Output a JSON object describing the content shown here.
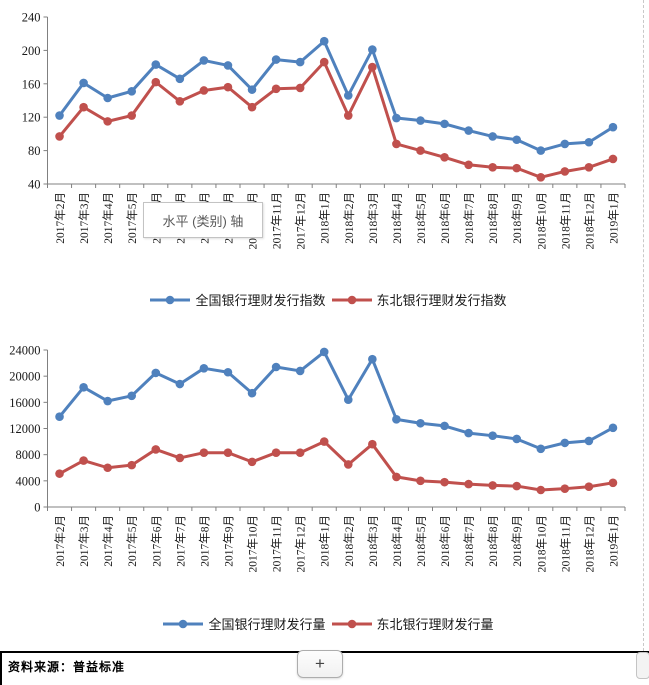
{
  "tooltip": {
    "text": "水平 (类别) 轴"
  },
  "footer": {
    "source_label": "资料来源：普益标准",
    "plus_button_label": "+"
  },
  "colors": {
    "series_blue": "#4F81BD",
    "series_red": "#C0504D",
    "axis": "#808080",
    "tick_text": "#1a1a1a",
    "page_boundary_dash": "#c9c9c9"
  },
  "chart_data": [
    {
      "id": "index",
      "type": "line",
      "title": "",
      "xlabel": "",
      "ylabel": "",
      "grid": false,
      "legend_position": "bottom",
      "ylim": [
        40,
        240
      ],
      "ytick_step": 40,
      "categories": [
        "2017年2月",
        "2017年3月",
        "2017年4月",
        "2017年5月",
        "2017年6月",
        "2017年7月",
        "2017年8月",
        "2017年9月",
        "2017年10月",
        "2017年11月",
        "2017年12月",
        "2018年1月",
        "2018年2月",
        "2018年3月",
        "2018年4月",
        "2018年5月",
        "2018年6月",
        "2018年7月",
        "2018年8月",
        "2018年9月",
        "2018年10月",
        "2018年11月",
        "2018年12月",
        "2019年1月"
      ],
      "series": [
        {
          "name": "全国银行理财发行指数",
          "color": "#4F81BD",
          "values": [
            122,
            161,
            143,
            151,
            183,
            166,
            188,
            182,
            153,
            189,
            186,
            211,
            146,
            201,
            119,
            116,
            112,
            104,
            97,
            93,
            80,
            88,
            90,
            108
          ]
        },
        {
          "name": "东北银行理财发行指数",
          "color": "#C0504D",
          "values": [
            97,
            132,
            115,
            122,
            162,
            139,
            152,
            156,
            132,
            154,
            155,
            186,
            122,
            180,
            88,
            80,
            72,
            63,
            60,
            59,
            48,
            55,
            60,
            70
          ]
        }
      ]
    },
    {
      "id": "volume",
      "type": "line",
      "title": "",
      "xlabel": "",
      "ylabel": "",
      "grid": false,
      "legend_position": "bottom",
      "ylim": [
        0,
        24000
      ],
      "ytick_step": 4000,
      "categories": [
        "2017年2月",
        "2017年3月",
        "2017年4月",
        "2017年5月",
        "2017年6月",
        "2017年7月",
        "2017年8月",
        "2017年9月",
        "2017年10月",
        "2017年11月",
        "2017年12月",
        "2018年1月",
        "2018年2月",
        "2018年3月",
        "2018年4月",
        "2018年5月",
        "2018年6月",
        "2018年7月",
        "2018年8月",
        "2018年9月",
        "2018年10月",
        "2018年11月",
        "2018年12月",
        "2019年1月"
      ],
      "series": [
        {
          "name": "全国银行理财发行量",
          "color": "#4F81BD",
          "values": [
            13800,
            18300,
            16200,
            17000,
            20500,
            18800,
            21200,
            20600,
            17400,
            21400,
            20800,
            23700,
            16400,
            22600,
            13400,
            12800,
            12400,
            11300,
            10900,
            10400,
            8900,
            9800,
            10100,
            12100
          ]
        },
        {
          "name": "东北银行理财发行量",
          "color": "#C0504D",
          "values": [
            5100,
            7100,
            6000,
            6400,
            8800,
            7500,
            8300,
            8300,
            6900,
            8300,
            8300,
            10000,
            6500,
            9600,
            4600,
            4000,
            3800,
            3500,
            3300,
            3200,
            2600,
            2800,
            3100,
            3700
          ]
        }
      ]
    }
  ]
}
